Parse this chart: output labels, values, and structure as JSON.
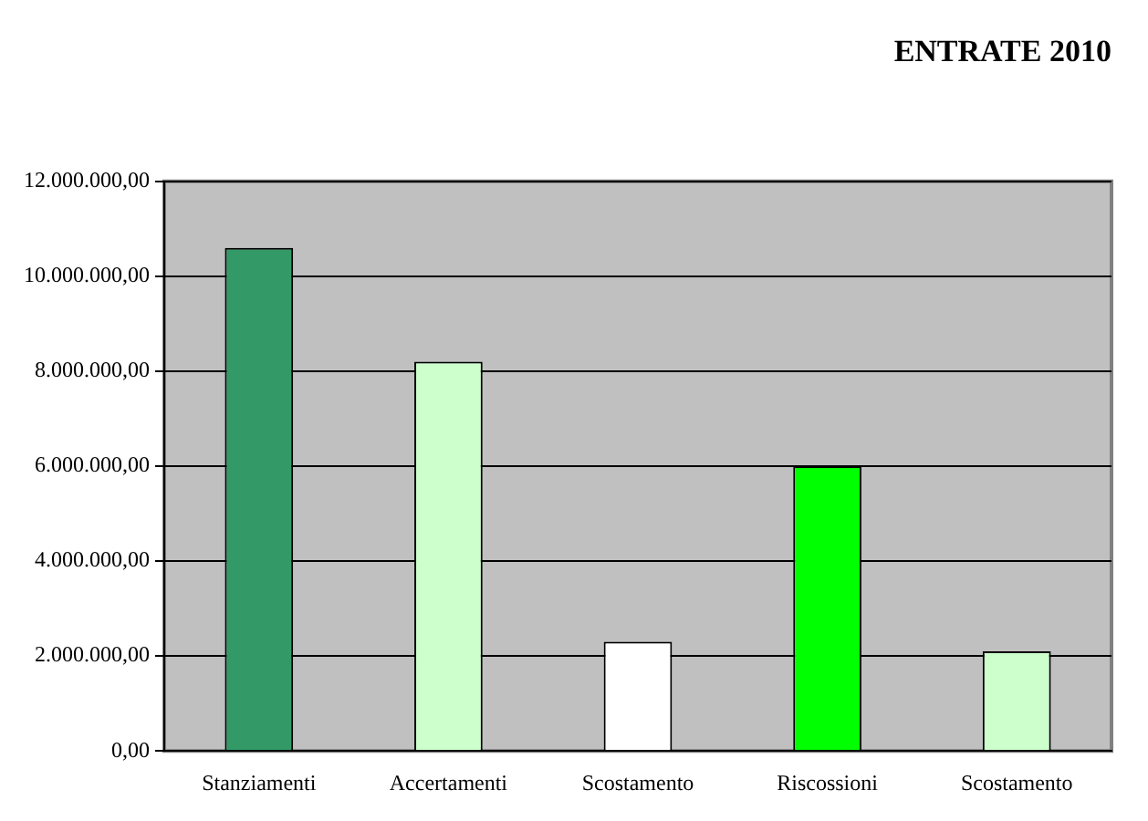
{
  "chart_data": {
    "type": "bar",
    "title": "ENTRATE 2010",
    "categories": [
      "Stanziamenti",
      "Accertamenti",
      "Scostamento",
      "Riscossioni",
      "Scostamento"
    ],
    "values": [
      10600000,
      8200000,
      2300000,
      6000000,
      2100000
    ],
    "colors": [
      "#339966",
      "#ccffcc",
      "#ffffff",
      "#00ff00",
      "#ccffcc"
    ],
    "ylim": [
      0,
      12000000
    ],
    "yticks": [
      {
        "value": 0,
        "label": "0,00"
      },
      {
        "value": 2000000,
        "label": "2.000.000,00"
      },
      {
        "value": 4000000,
        "label": "4.000.000,00"
      },
      {
        "value": 6000000,
        "label": "6.000.000,00"
      },
      {
        "value": 8000000,
        "label": "8.000.000,00"
      },
      {
        "value": 10000000,
        "label": "10.000.000,00"
      },
      {
        "value": 12000000,
        "label": "12.000.000,00"
      }
    ],
    "grid": "y",
    "legend": false
  }
}
